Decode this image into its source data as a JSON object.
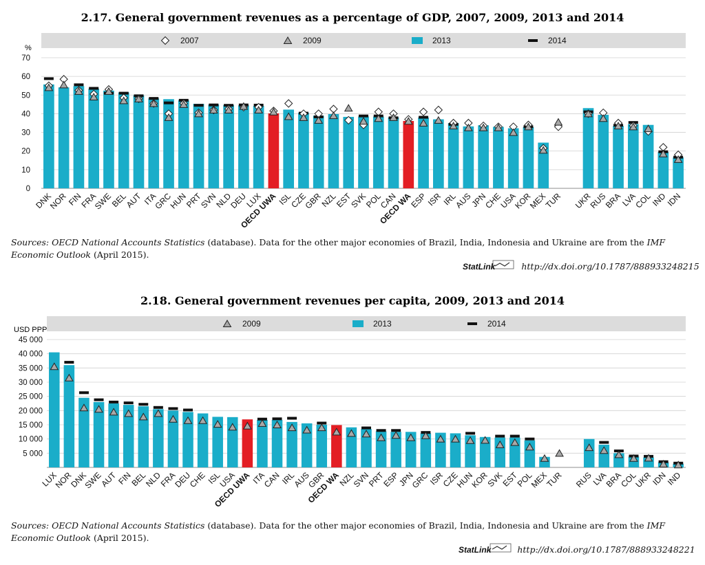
{
  "chart_data": [
    {
      "type": "bar",
      "title": "2.17.  General government revenues as a percentage of GDP, 2007, 2009, 2013 and 2014",
      "ylabel": "%",
      "ylim": [
        0,
        70
      ],
      "yticks": [
        0,
        10,
        20,
        30,
        40,
        50,
        60,
        70
      ],
      "grid": true,
      "legend": "top",
      "legend_entries": [
        "2007",
        "2009",
        "2013",
        "2014"
      ],
      "colors": {
        "bar": "#1AADC9",
        "highlight": "#E31E24",
        "marker": "#111111"
      },
      "categories": [
        "DNK",
        "NOR",
        "FIN",
        "FRA",
        "SWE",
        "BEL",
        "AUT",
        "ITA",
        "GRC",
        "HUN",
        "PRT",
        "SVN",
        "NLD",
        "DEU",
        "LUX",
        "OECD UWA",
        "ISL",
        "CZE",
        "GBR",
        "NZL",
        "EST",
        "SVK",
        "POL",
        "CAN",
        "OECD WA",
        "ESP",
        "ISR",
        "IRL",
        "AUS",
        "JPN",
        "CHE",
        "USA",
        "KOR",
        "MEX",
        "TUR",
        "",
        "UKR",
        "RUS",
        "BRA",
        "LVA",
        "COL",
        "IND",
        "IDN"
      ],
      "highlight": [
        "OECD UWA",
        "OECD WA"
      ],
      "series": [
        {
          "name": "2013",
          "kind": "bar",
          "values": [
            55.7,
            54.1,
            54.8,
            53.4,
            52.4,
            51.4,
            49.8,
            48.2,
            47.8,
            47.2,
            45.3,
            44.9,
            44.6,
            44.5,
            44.2,
            40.2,
            42.2,
            40.5,
            38.9,
            39.8,
            38.3,
            38.5,
            38.5,
            38.0,
            36.1,
            37.9,
            37.0,
            34.9,
            33.2,
            33.8,
            33.0,
            32.2,
            32.8,
            24.5,
            null,
            null,
            43.0,
            39.4,
            33.5,
            34.4,
            34.0,
            19.5,
            16.6
          ]
        },
        {
          "name": "2014",
          "kind": "dash",
          "values": [
            58.8,
            null,
            55.5,
            53.6,
            51.0,
            51.0,
            49.6,
            48.2,
            45.8,
            47.2,
            44.5,
            44.7,
            44.5,
            44.7,
            44.6,
            null,
            null,
            40.3,
            38.3,
            null,
            null,
            38.8,
            38.8,
            37.8,
            null,
            38.1,
            null,
            34.3,
            null,
            null,
            null,
            null,
            33.0,
            null,
            null,
            null,
            41.0,
            null,
            33.8,
            35.3,
            null,
            19.6,
            16.7
          ]
        },
        {
          "name": "2007",
          "kind": "diamond",
          "values": [
            55.0,
            58.5,
            52.5,
            50.5,
            53.0,
            48.5,
            48.0,
            45.5,
            40.0,
            45.5,
            40.5,
            42.0,
            42.5,
            43.5,
            43.5,
            41.5,
            45.5,
            40.0,
            40.0,
            42.5,
            36.5,
            34.0,
            41.0,
            40.0,
            37.0,
            41.0,
            42.0,
            35.0,
            35.0,
            33.5,
            33.0,
            33.0,
            34.0,
            21.5,
            33.0,
            null,
            40.0,
            40.5,
            35.0,
            33.5,
            30.5,
            22.0,
            18.0
          ]
        },
        {
          "name": "2009",
          "kind": "triangle",
          "values": [
            54.0,
            55.5,
            52.0,
            49.0,
            52.0,
            47.0,
            48.0,
            45.5,
            38.0,
            45.0,
            40.0,
            42.0,
            42.0,
            44.0,
            42.0,
            41.0,
            38.5,
            38.0,
            36.5,
            39.0,
            43.0,
            36.0,
            37.5,
            38.0,
            36.0,
            35.0,
            36.5,
            33.5,
            32.5,
            32.5,
            32.5,
            30.0,
            33.0,
            20.5,
            35.5,
            null,
            40.0,
            37.5,
            33.5,
            33.0,
            32.0,
            18.5,
            15.5
          ]
        }
      ]
    },
    {
      "type": "bar",
      "title": "2.18.  General government revenues per capita, 2009, 2013 and 2014",
      "ylabel": "USD PPP",
      "ylim": [
        0,
        45000
      ],
      "yticks": [
        5000,
        10000,
        15000,
        20000,
        25000,
        30000,
        35000,
        40000,
        45000
      ],
      "ytick_labels": [
        "5 000",
        "10 000",
        "15 000",
        "20 000",
        "25 000",
        "30 000",
        "35 000",
        "40 000",
        "45 000"
      ],
      "grid": true,
      "legend": "top",
      "legend_entries": [
        "2009",
        "2013",
        "2014"
      ],
      "colors": {
        "bar": "#1AADC9",
        "highlight": "#E31E24",
        "marker": "#111111"
      },
      "categories": [
        "LUX",
        "NOR",
        "DNK",
        "SWE",
        "AUT",
        "FIN",
        "BEL",
        "NLD",
        "FRA",
        "DEU",
        "CHE",
        "ISL",
        "USA",
        "OECD UWA",
        "ITA",
        "CAN",
        "IRL",
        "AUS",
        "GBR",
        "OECD WA",
        "NZL",
        "SVN",
        "PRT",
        "ESP",
        "JPN",
        "GRC",
        "ISR",
        "CZE",
        "HUN",
        "KOR",
        "SVK",
        "EST",
        "POL",
        "MEX",
        "TUR",
        "",
        "RUS",
        "LVA",
        "BRA",
        "COL",
        "UKR",
        "IDN",
        "IND"
      ],
      "highlight": [
        "OECD UWA",
        "OECD WA"
      ],
      "series": [
        {
          "name": "2013",
          "kind": "bar",
          "values": [
            40500,
            36000,
            24500,
            23000,
            22500,
            22000,
            21500,
            20500,
            20000,
            19500,
            19000,
            17800,
            17700,
            16900,
            16700,
            16700,
            16000,
            15500,
            15000,
            14900,
            14100,
            13500,
            12700,
            12500,
            12500,
            12000,
            12200,
            12000,
            11300,
            10700,
            10500,
            10500,
            9500,
            3700,
            null,
            null,
            10000,
            8000,
            5000,
            3800,
            3500,
            1800,
            1300
          ]
        },
        {
          "name": "2014",
          "kind": "dash",
          "values": [
            null,
            37000,
            26300,
            23800,
            23000,
            22700,
            22200,
            21100,
            20700,
            20200,
            null,
            null,
            null,
            null,
            17000,
            17100,
            17300,
            null,
            15600,
            null,
            null,
            13900,
            13000,
            13000,
            null,
            12300,
            null,
            null,
            12000,
            null,
            11000,
            11000,
            10000,
            null,
            null,
            null,
            null,
            8800,
            5800,
            4000,
            3900,
            2000,
            1500
          ]
        },
        {
          "name": "2009",
          "kind": "triangle",
          "values": [
            35500,
            31500,
            21000,
            20500,
            19500,
            19000,
            17800,
            19000,
            17000,
            16500,
            16500,
            15200,
            14200,
            14600,
            15500,
            15000,
            14000,
            13200,
            14000,
            12500,
            12000,
            11800,
            10500,
            11300,
            10500,
            11200,
            10000,
            10000,
            9500,
            9600,
            8000,
            8800,
            7200,
            3200,
            5000,
            null,
            7000,
            6000,
            4500,
            3200,
            3300,
            1200,
            900
          ]
        }
      ]
    }
  ],
  "footnote1": {
    "sources_label": "Sources:",
    "db_name": "OECD National Accounts Statistics",
    "text1": " (database). Data for the other major economies of Brazil, India, Indonesia and Ukraine are from the ",
    "imf": "IMF",
    "imf2": "Economic Outlook",
    "text2": " (April 2015)."
  },
  "footnote2": {
    "sources_label": "Sources:",
    "db_name": "OECD National Accounts Statistics",
    "text1": " (database). Data for the other major economies of Brazil, India, Indonesia and Ukraine are from the ",
    "imf": "IMF",
    "imf2": "Economic Outlook",
    "text2": " (April 2015)."
  },
  "statlink1": {
    "label": "StatLink",
    "url": "http://dx.doi.org/10.1787/888933248215"
  },
  "statlink2": {
    "label": "StatLink",
    "url": "http://dx.doi.org/10.1787/888933248221"
  }
}
